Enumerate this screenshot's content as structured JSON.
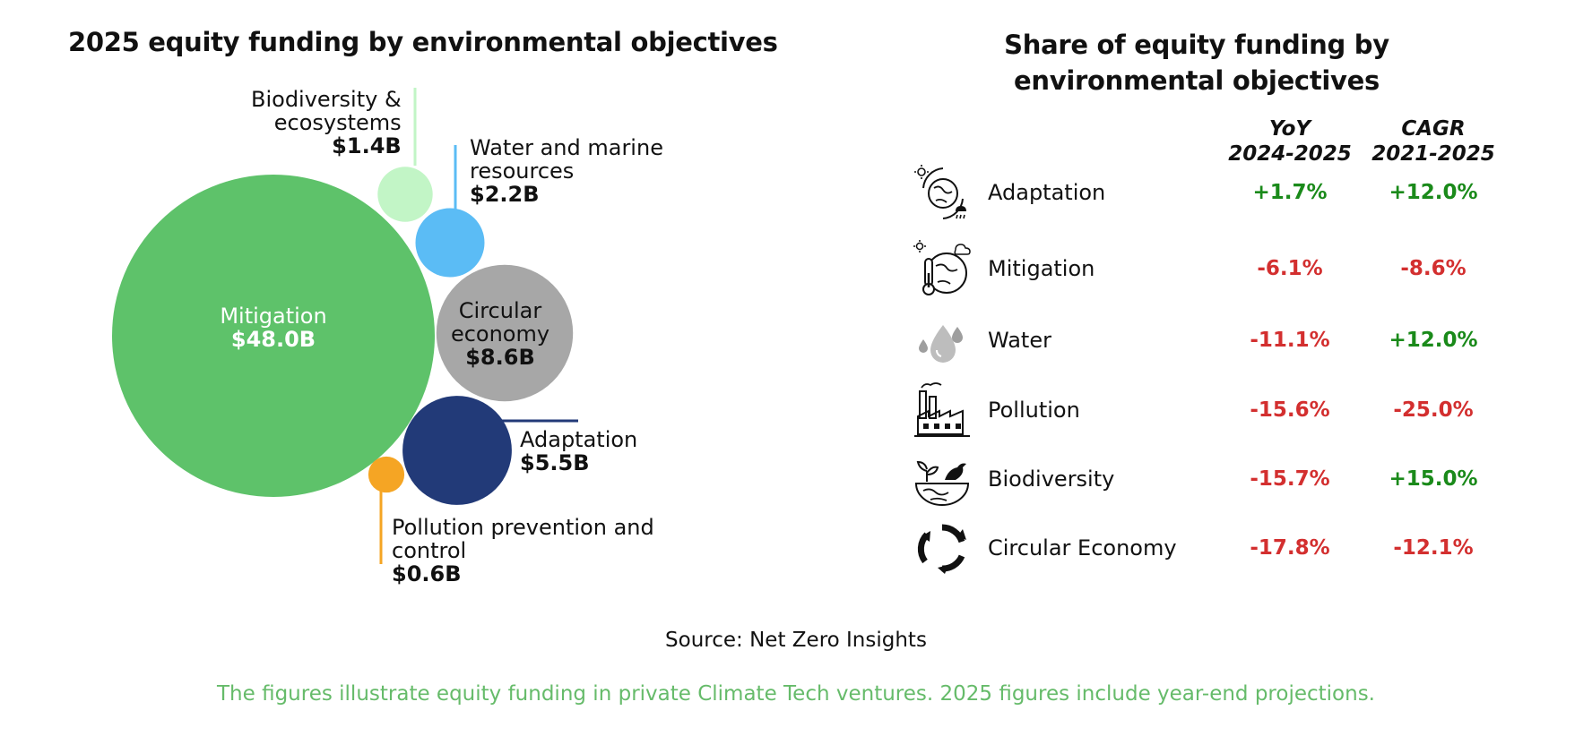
{
  "left_title": "2025 equity funding by environmental objectives",
  "right_title": [
    "Share of equity funding  by",
    "environmental objectives"
  ],
  "colors": {
    "mitigation": "#5ec26a",
    "biodiversity": "#c2f5c6",
    "water": "#5bbcf5",
    "circular": "#a7a7a7",
    "adaptation": "#223a78",
    "pollution": "#f5a524",
    "positive": "#1a8a1a",
    "negative": "#d32f2f",
    "footnote": "#66bb6a"
  },
  "chart_data": [
    {
      "type": "bubble",
      "title": "2025 equity funding by environmental objectives",
      "unit": "$B",
      "points": [
        {
          "name": "Mitigation",
          "value": 48.0,
          "label": "$48.0B"
        },
        {
          "name": "Circular economy",
          "value": 8.6,
          "label": "$8.6B"
        },
        {
          "name": "Adaptation",
          "value": 5.5,
          "label": "$5.5B"
        },
        {
          "name": "Water and marine resources",
          "value": 2.2,
          "label": "$2.2B"
        },
        {
          "name": "Biodiversity & ecosystems",
          "value": 1.4,
          "label": "$1.4B"
        },
        {
          "name": "Pollution prevention and control",
          "value": 0.6,
          "label": "$0.6B"
        }
      ]
    },
    {
      "type": "table",
      "title": "Share of equity funding  by environmental objectives",
      "columns": [
        {
          "line1": "YoY",
          "line2": "2024-2025"
        },
        {
          "line1": "CAGR",
          "line2": "2021-2025"
        }
      ],
      "rows": [
        {
          "name": "Adaptation",
          "icon": "earth-weather-icon",
          "yoy": "+1.7%",
          "cagr": "+12.0%"
        },
        {
          "name": "Mitigation",
          "icon": "thermometer-earth-icon",
          "yoy": "-6.1%",
          "cagr": "-8.6%"
        },
        {
          "name": "Water",
          "icon": "water-drops-icon",
          "yoy": "-11.1%",
          "cagr": "+12.0%"
        },
        {
          "name": "Pollution",
          "icon": "factory-icon",
          "yoy": "-15.6%",
          "cagr": "-25.0%"
        },
        {
          "name": "Biodiversity",
          "icon": "bird-earth-icon",
          "yoy": "-15.7%",
          "cagr": "+15.0%"
        },
        {
          "name": "Circular Economy",
          "icon": "recycle-icon",
          "yoy": "-17.8%",
          "cagr": "-12.1%"
        }
      ]
    }
  ],
  "bubble_labels": {
    "biodiversity": {
      "name1": "Biodiversity &",
      "name2": "ecosystems",
      "value": "$1.4B"
    },
    "water": {
      "name1": "Water and marine",
      "name2": "resources",
      "value": "$2.2B"
    },
    "mitigation": {
      "name": "Mitigation",
      "value": "$48.0B"
    },
    "circular": {
      "name1": "Circular",
      "name2": "economy",
      "value": "$8.6B"
    },
    "adaptation": {
      "name": "Adaptation",
      "value": "$5.5B"
    },
    "pollution": {
      "name1": "Pollution prevention and",
      "name2": "control",
      "value": "$0.6B"
    }
  },
  "source": "Source: Net Zero Insights",
  "footnote": "The figures illustrate equity funding in private Climate Tech ventures. 2025 figures include year-end projections."
}
